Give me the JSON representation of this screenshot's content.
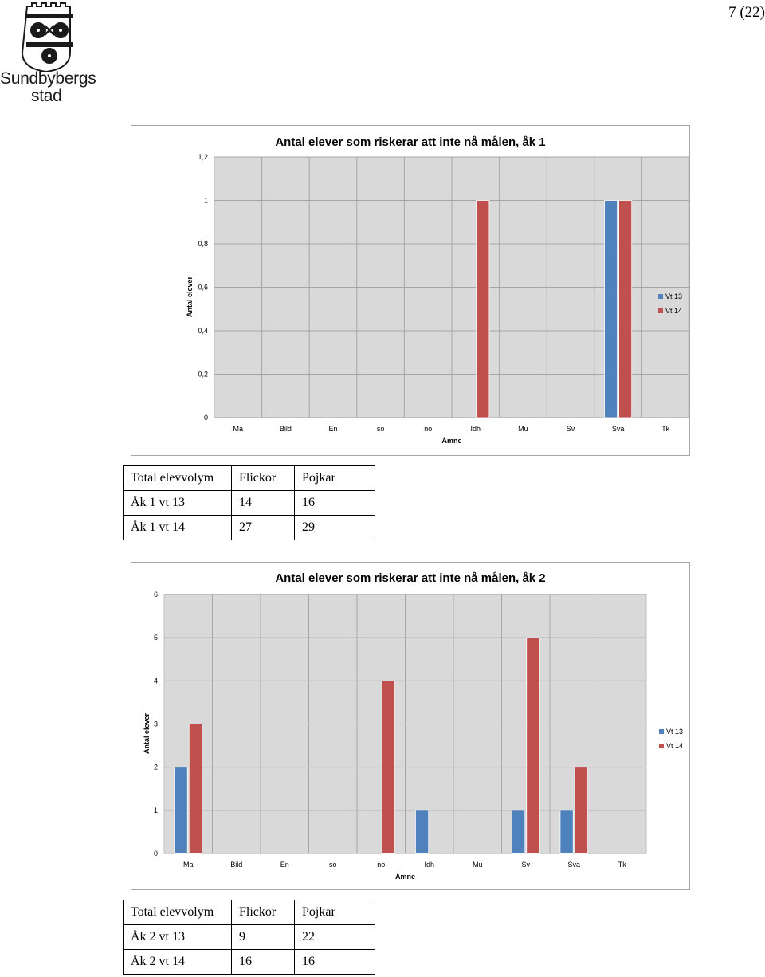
{
  "header": {
    "logo_text_line1": "Sundbybergs",
    "logo_text_line2": "stad",
    "page_number": "7 (22)"
  },
  "chart_data": [
    {
      "type": "bar",
      "title": "Antal elever som riskerar att inte nå målen, åk 1",
      "xlabel": "Ämne",
      "ylabel": "Antal elever",
      "categories": [
        "Ma",
        "Bild",
        "En",
        "so",
        "no",
        "Idh",
        "Mu",
        "Sv",
        "Sva",
        "Tk"
      ],
      "series": [
        {
          "name": "Vt 13",
          "color": "#4f81bd",
          "values": [
            0,
            0,
            0,
            0,
            0,
            0,
            0,
            0,
            1,
            0
          ]
        },
        {
          "name": "Vt 14",
          "color": "#c0504d",
          "values": [
            0,
            0,
            0,
            0,
            0,
            1,
            0,
            0,
            1,
            0
          ]
        }
      ],
      "ylim": [
        0,
        1.2
      ],
      "yticks": [
        "0",
        "0,2",
        "0,4",
        "0,6",
        "0,8",
        "1",
        "1,2"
      ],
      "grid": true,
      "legend_position": "right"
    },
    {
      "type": "bar",
      "title": "Antal elever som riskerar att inte nå målen, åk 2",
      "xlabel": "Ämne",
      "ylabel": "Antal elever",
      "categories": [
        "Ma",
        "Bild",
        "En",
        "so",
        "no",
        "Idh",
        "Mu",
        "Sv",
        "Sva",
        "Tk"
      ],
      "series": [
        {
          "name": "Vt 13",
          "color": "#4f81bd",
          "values": [
            2,
            0,
            0,
            0,
            0,
            1,
            0,
            1,
            1,
            0
          ]
        },
        {
          "name": "Vt 14",
          "color": "#c0504d",
          "values": [
            3,
            0,
            0,
            0,
            4,
            0,
            0,
            5,
            2,
            0
          ]
        }
      ],
      "ylim": [
        0,
        6
      ],
      "yticks": [
        "0",
        "1",
        "2",
        "3",
        "4",
        "5",
        "6"
      ],
      "grid": true,
      "legend_position": "right"
    }
  ],
  "tables": [
    {
      "header": [
        "Total elevvolym",
        "Flickor",
        "Pojkar"
      ],
      "rows": [
        [
          "Åk 1 vt 13",
          "14",
          "16"
        ],
        [
          "Åk 1 vt 14",
          "27",
          "29"
        ]
      ]
    },
    {
      "header": [
        "Total elevvolym",
        "Flickor",
        "Pojkar"
      ],
      "rows": [
        [
          "Åk 2 vt 13",
          "9",
          "22"
        ],
        [
          "Åk 2 vt 14",
          "16",
          "16"
        ]
      ]
    }
  ]
}
